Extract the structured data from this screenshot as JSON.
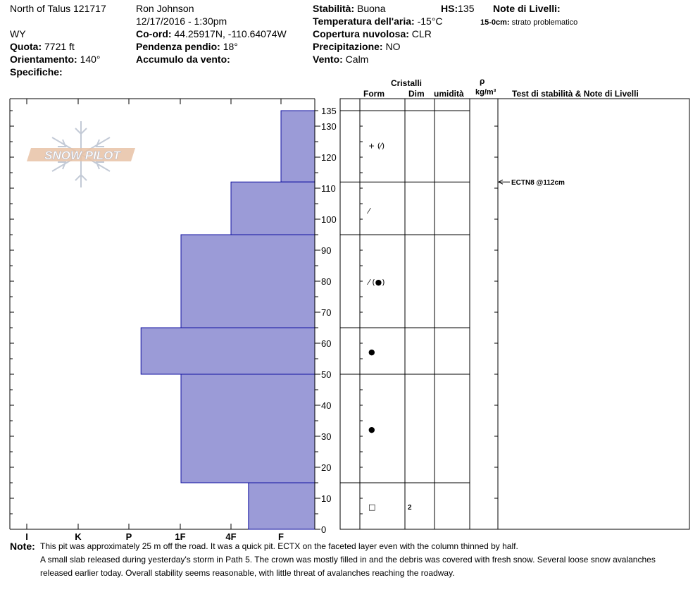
{
  "header": {
    "location": "North of Talus 121717",
    "state": "WY",
    "observer": "Ron  Johnson",
    "datetime": "12/17/2016 - 1:30pm",
    "elevation_label": "Quota:",
    "elevation_value": "7721 ft",
    "aspect_label": "Orientamento:",
    "aspect_value": "140°",
    "specifics_label": "Specifiche:",
    "coord_label": "Co-ord:",
    "coord_value": "44.25917N, -110.64074W",
    "slope_label": "Pendenza pendio:",
    "slope_value": "18°",
    "wind_loading_label": "Accumulo da vento:",
    "stability_label": "Stabilità:",
    "stability_value": "Buona",
    "hs_label": "HS:",
    "hs_value": "135",
    "air_temp_label": "Temperatura dell'aria:",
    "air_temp_value": "-15°C",
    "sky_label": "Copertura nuvolosa:",
    "sky_value": "CLR",
    "precip_label": "Precipitazione:",
    "precip_value": "NO",
    "wind_label": "Vento:",
    "wind_value": "Calm",
    "layer_notes_title": "Note di Livelli:",
    "layer_note_range": "15-0cm:",
    "layer_note_text": "strato problematico"
  },
  "columns": {
    "cristalli": "Cristalli",
    "form": "Form",
    "dim": "Dim",
    "umidita": "umidità",
    "rho": "ρ",
    "density_unit": "kg/m³",
    "tests_notes": "Test di stabilità & Note di Livelli"
  },
  "logo_text": "SNOW PILOT",
  "notes": {
    "label": "Note:",
    "lines": [
      "This pit was approximately 25 m off the road.  It was a quick pit.  ECTX on the faceted layer even with the column thinned by half.",
      "A small slab released during yesterday's storm in Path 5.  The crown was mostly filled in and the debris was covered with fresh snow.  Several loose snow avalanches",
      "released earlier today.  Overall stability seems reasonable, with little threat of avalanches reaching the roadway."
    ]
  },
  "chart_data": {
    "type": "bar",
    "orientation": "horizontal",
    "hardness_scale": [
      "I",
      "K",
      "P",
      "1F",
      "4F",
      "F"
    ],
    "y_axis": {
      "min": 0,
      "max": 135,
      "unit": "cm",
      "tick_labels": [
        0,
        10,
        20,
        30,
        40,
        50,
        60,
        70,
        80,
        90,
        100,
        110,
        120,
        130,
        135
      ]
    },
    "layers": [
      {
        "top": 135,
        "bottom": 112,
        "hardness": "F"
      },
      {
        "top": 112,
        "bottom": 95,
        "hardness": "4F"
      },
      {
        "top": 95,
        "bottom": 65,
        "hardness": "1F"
      },
      {
        "top": 65,
        "bottom": 50,
        "hardness": "P-"
      },
      {
        "top": 50,
        "bottom": 15,
        "hardness": "1F"
      },
      {
        "top": 15,
        "bottom": 0,
        "hardness": "4F-"
      }
    ],
    "hardness_index": {
      "F": 0,
      "4F": 1,
      "1F": 2,
      "P-": 2.8,
      "4F-": 0.65
    },
    "crystal_layers": [
      {
        "height": 124,
        "form": "+ (⁄)",
        "dim": ""
      },
      {
        "height": 103,
        "form": "⁄",
        "dim": ""
      },
      {
        "height": 80,
        "form": "⁄ (●)",
        "dim": ""
      },
      {
        "height": 57.5,
        "form": "●",
        "dim": ""
      },
      {
        "height": 32.5,
        "form": "●",
        "dim": ""
      },
      {
        "height": 7.5,
        "form": "□",
        "dim": "2"
      }
    ],
    "stability_tests": [
      {
        "height": 112,
        "text": "ECTN8 @112cm"
      }
    ],
    "colors": {
      "bar_fill": "#9b9bd7",
      "bar_edge": "#1010a0"
    }
  }
}
